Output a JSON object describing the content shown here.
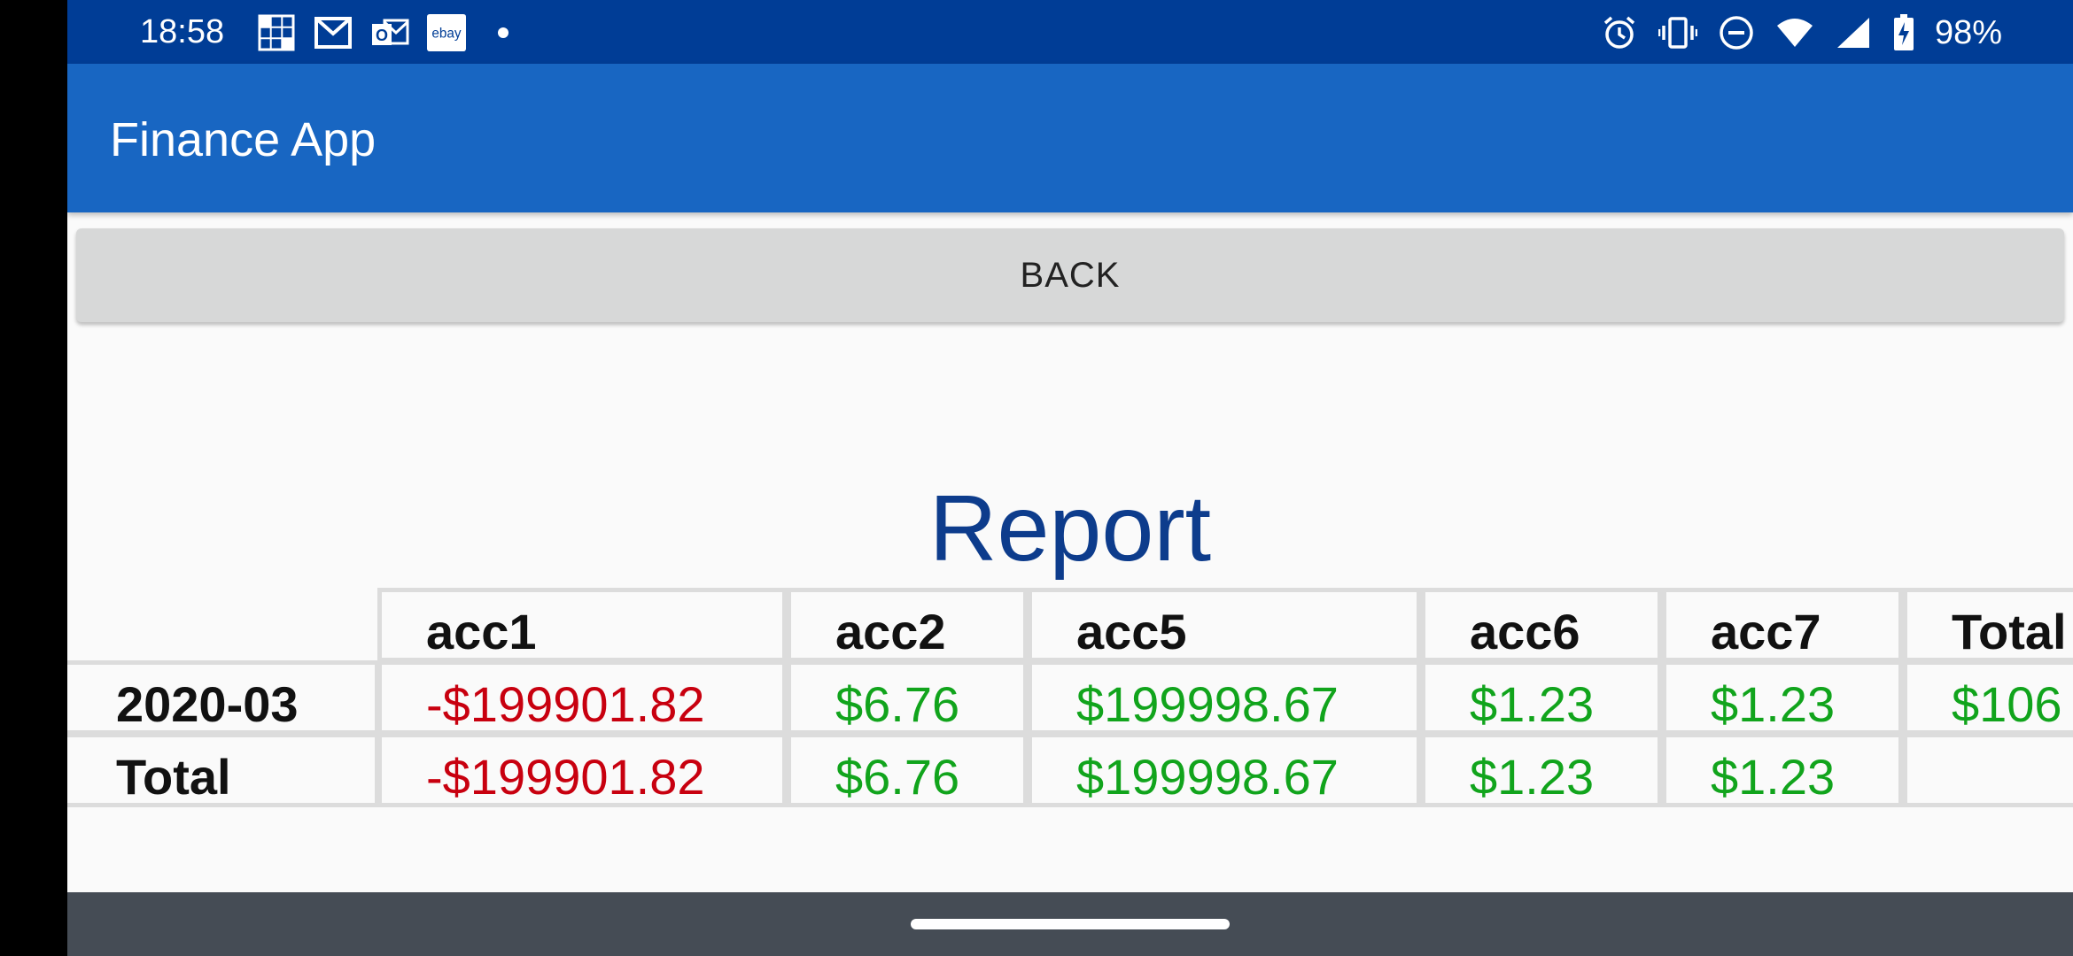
{
  "status_bar": {
    "time": "18:58",
    "left_icons": [
      "crossword-icon",
      "gmail-icon",
      "outlook-icon",
      "ebay-icon",
      "dot-icon"
    ],
    "right_icons": [
      "alarm-icon",
      "vibrate-icon",
      "dnd-icon",
      "wifi-icon",
      "signal-icon",
      "battery-charging-icon"
    ],
    "battery": "98%",
    "ebay_label": "ebay",
    "outlook_label": "O"
  },
  "app_bar": {
    "title": "Finance App"
  },
  "back_button": {
    "label": "BACK"
  },
  "report": {
    "title": "Report",
    "columns": [
      "acc1",
      "acc2",
      "acc5",
      "acc6",
      "acc7",
      "Total"
    ],
    "rows": [
      {
        "label": "2020-03",
        "values": [
          "-$199901.82",
          "$6.76",
          "$199998.67",
          "$1.23",
          "$1.23",
          "$106"
        ]
      },
      {
        "label": "Total",
        "values": [
          "-$199901.82",
          "$6.76",
          "$199998.67",
          "$1.23",
          "$1.23",
          ""
        ]
      }
    ]
  },
  "colors": {
    "negative": "#c8000f",
    "positive": "#11a41c",
    "app_bar": "#1866c2",
    "status_bar": "#003d96"
  }
}
